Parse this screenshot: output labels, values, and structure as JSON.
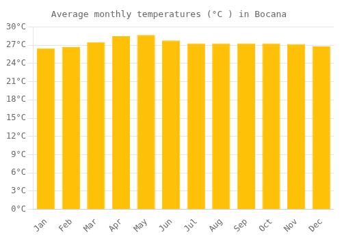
{
  "chart_data": {
    "type": "bar",
    "title": "Average monthly temperatures (°C ) in Bocana",
    "categories": [
      "Jan",
      "Feb",
      "Mar",
      "Apr",
      "May",
      "Jun",
      "Jul",
      "Aug",
      "Sep",
      "Oct",
      "Nov",
      "Dec"
    ],
    "values": [
      26.5,
      26.7,
      27.5,
      28.5,
      28.7,
      27.8,
      27.3,
      27.3,
      27.3,
      27.3,
      27.2,
      26.8
    ],
    "color": "#FFC107",
    "ylim": [
      0,
      30
    ],
    "yticks": [
      {
        "value": 0,
        "label": "0°C"
      },
      {
        "value": 3,
        "label": "3°C"
      },
      {
        "value": 6,
        "label": "6°C"
      },
      {
        "value": 9,
        "label": "9°C"
      },
      {
        "value": 12,
        "label": "12°C"
      },
      {
        "value": 15,
        "label": "15°C"
      },
      {
        "value": 18,
        "label": "18°C"
      },
      {
        "value": 21,
        "label": "21°C"
      },
      {
        "value": 24,
        "label": "24°C"
      },
      {
        "value": 27,
        "label": "27°C"
      },
      {
        "value": 30,
        "label": "30°C"
      }
    ],
    "grid": true
  }
}
